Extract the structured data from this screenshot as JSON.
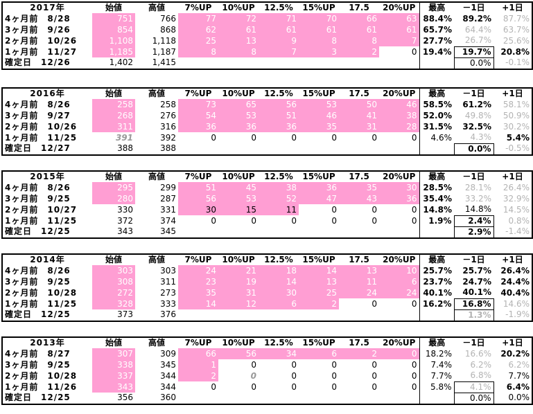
{
  "headers": [
    "始値",
    "高値",
    "7%UP",
    "10%UP",
    "12.5%",
    "15%UP",
    "17.5",
    "20%UP",
    "最高",
    "－1日",
    "+1日"
  ],
  "blocks": [
    {
      "year": "2017年",
      "rows": [
        {
          "label": "4ヶ月前　8/28",
          "open": "751",
          "high": "766",
          "u7": "77",
          "u10": "72",
          "u125": "71",
          "u15": "70",
          "u175": "66",
          "u20": "63",
          "max": "88.4%",
          "m1": "89.2%",
          "p1": "87.7%"
        },
        {
          "label": "3ヶ月前　9/26",
          "open": "854",
          "high": "868",
          "u7": "62",
          "u10": "61",
          "u125": "61",
          "u15": "61",
          "u175": "61",
          "u20": "61",
          "max": "65.7%",
          "m1": "64.4%",
          "p1": "63.7%"
        },
        {
          "label": "2ヶ月前　10/26",
          "open": "1,108",
          "high": "1,118",
          "u7": "25",
          "u10": "13",
          "u125": "9",
          "u15": "8",
          "u175": "8",
          "u20": "7",
          "max": "27.7%",
          "m1": "26.7%",
          "p1": "25.6%"
        },
        {
          "label": "1ヶ月前　11/27",
          "open": "1,185",
          "high": "1,187",
          "u7": "8",
          "u10": "8",
          "u125": "7",
          "u15": "3",
          "u175": "2",
          "u20": "0",
          "max": "19.4%",
          "m1": "19.7%",
          "p1": "20.8%"
        },
        {
          "label": "確定日　12/26",
          "open": "1,402",
          "high": "1,415",
          "u7": "",
          "u10": "",
          "u125": "",
          "u15": "",
          "u175": "",
          "u20": "",
          "max": "",
          "m1": "0.0%",
          "p1": "-0.1%"
        }
      ]
    },
    {
      "year": "2016年",
      "rows": [
        {
          "label": "4ヶ月前　8/26",
          "open": "258",
          "high": "258",
          "u7": "73",
          "u10": "65",
          "u125": "56",
          "u15": "53",
          "u175": "50",
          "u20": "46",
          "max": "58.5%",
          "m1": "61.2%",
          "p1": "58.1%"
        },
        {
          "label": "3ヶ月前　9/27",
          "open": "268",
          "high": "276",
          "u7": "54",
          "u10": "53",
          "u125": "51",
          "u15": "46",
          "u175": "41",
          "u20": "38",
          "max": "52.0%",
          "m1": "49.8%",
          "p1": "50.9%"
        },
        {
          "label": "2ヶ月前　10/26",
          "open": "311",
          "high": "316",
          "u7": "36",
          "u10": "36",
          "u125": "36",
          "u15": "35",
          "u175": "31",
          "u20": "28",
          "max": "31.5%",
          "m1": "32.5%",
          "p1": "30.2%"
        },
        {
          "label": "1ヶ月前　11/25",
          "open": "391",
          "high": "392",
          "u7": "0",
          "u10": "0",
          "u125": "0",
          "u15": "0",
          "u175": "0",
          "u20": "0",
          "max": "4.6%",
          "m1": "4.3%",
          "p1": "5.4%"
        },
        {
          "label": "確定日　12/27",
          "open": "388",
          "high": "388",
          "u7": "",
          "u10": "",
          "u125": "",
          "u15": "",
          "u175": "",
          "u20": "",
          "max": "",
          "m1": "0.0%",
          "p1": "-0.5%"
        }
      ]
    },
    {
      "year": "2015年",
      "rows": [
        {
          "label": "4ヶ月前　8/26",
          "open": "295",
          "high": "299",
          "u7": "51",
          "u10": "45",
          "u125": "38",
          "u15": "36",
          "u175": "35",
          "u20": "30",
          "max": "28.5%",
          "m1": "28.1%",
          "p1": "26.4%"
        },
        {
          "label": "3ヶ月前　9/25",
          "open": "280",
          "high": "287",
          "u7": "56",
          "u10": "53",
          "u125": "52",
          "u15": "47",
          "u175": "43",
          "u20": "36",
          "max": "35.4%",
          "m1": "33.2%",
          "p1": "32.9%"
        },
        {
          "label": "2ヶ月前　10/27",
          "open": "330",
          "high": "331",
          "u7": "30",
          "u10": "15",
          "u125": "11",
          "u15": "0",
          "u175": "0",
          "u20": "0",
          "max": "14.8%",
          "m1": "14.8%",
          "p1": "14.5%"
        },
        {
          "label": "1ヶ月前　11/25",
          "open": "372",
          "high": "374",
          "u7": "0",
          "u10": "0",
          "u125": "0",
          "u15": "0",
          "u175": "0",
          "u20": "0",
          "max": "1.9%",
          "m1": "2.4%",
          "p1": "0.8%"
        },
        {
          "label": "確定日　12/25",
          "open": "343",
          "high": "345",
          "u7": "",
          "u10": "",
          "u125": "",
          "u15": "",
          "u175": "",
          "u20": "",
          "max": "",
          "m1": "2.9%",
          "p1": "-1.4%"
        }
      ]
    },
    {
      "year": "2014年",
      "rows": [
        {
          "label": "4ヶ月前　8/26",
          "open": "303",
          "high": "303",
          "u7": "24",
          "u10": "21",
          "u125": "18",
          "u15": "14",
          "u175": "13",
          "u20": "10",
          "max": "25.7%",
          "m1": "25.7%",
          "p1": "26.4%"
        },
        {
          "label": "3ヶ月前　9/25",
          "open": "308",
          "high": "311",
          "u7": "23",
          "u10": "19",
          "u125": "14",
          "u15": "13",
          "u175": "11",
          "u20": "6",
          "max": "23.7%",
          "m1": "24.7%",
          "p1": "24.4%"
        },
        {
          "label": "2ヶ月前　10/28",
          "open": "272",
          "high": "273",
          "u7": "35",
          "u10": "31",
          "u125": "30",
          "u15": "25",
          "u175": "24",
          "u20": "24",
          "max": "40.1%",
          "m1": "40.1%",
          "p1": "40.4%"
        },
        {
          "label": "1ヶ月前　11/25",
          "open": "328",
          "high": "333",
          "u7": "14",
          "u10": "12",
          "u125": "6",
          "u15": "2",
          "u175": "0",
          "u20": "0",
          "max": "16.2%",
          "m1": "16.8%",
          "p1": "14.6%"
        },
        {
          "label": "確定日　12/25",
          "open": "373",
          "high": "376",
          "u7": "",
          "u10": "",
          "u125": "",
          "u15": "",
          "u175": "",
          "u20": "",
          "max": "",
          "m1": "1.3%",
          "p1": "-1.9%"
        }
      ]
    },
    {
      "year": "2013年",
      "rows": [
        {
          "label": "4ヶ月前　8/27",
          "open": "307",
          "high": "309",
          "u7": "66",
          "u10": "56",
          "u125": "34",
          "u15": "6",
          "u175": "2",
          "u20": "0",
          "max": "18.2%",
          "m1": "16.6%",
          "p1": "20.2%"
        },
        {
          "label": "3ヶ月前　9/25",
          "open": "338",
          "high": "345",
          "u7": "1",
          "u10": "0",
          "u125": "0",
          "u15": "0",
          "u175": "0",
          "u20": "0",
          "max": "7.4%",
          "m1": "6.2%",
          "p1": "6.2%"
        },
        {
          "label": "2ヶ月前　10/28",
          "open": "337",
          "high": "344",
          "u7": "2",
          "u10": "0",
          "u125": "0",
          "u15": "0",
          "u175": "0",
          "u20": "0",
          "max": "7.7%",
          "m1": "6.8%",
          "p1": "7.7%"
        },
        {
          "label": "1ヶ月前　11/26",
          "open": "343",
          "high": "344",
          "u7": "0",
          "u10": "0",
          "u125": "0",
          "u15": "0",
          "u175": "0",
          "u20": "0",
          "max": "5.8%",
          "m1": "4.1%",
          "p1": "6.4%"
        },
        {
          "label": "確定日　12/25",
          "open": "356",
          "high": "360",
          "u7": "",
          "u10": "",
          "u125": "",
          "u15": "",
          "u175": "",
          "u20": "",
          "max": "",
          "m1": "0.0%",
          "p1": "0.0%"
        }
      ]
    }
  ]
}
